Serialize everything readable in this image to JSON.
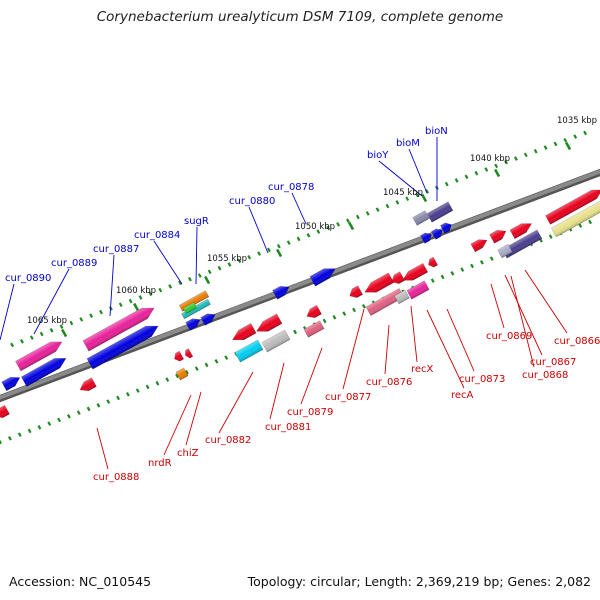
{
  "title": "Corynebacterium urealyticum DSM 7109, complete genome",
  "footer": {
    "accession": "Accession: NC_010545",
    "topology": "Topology: circular; Length: 2,369,219 bp; Genes: 2,082"
  },
  "colors": {
    "background": "#ffffff",
    "backbone": "#8a8a8a",
    "tick": "#1f8a1f",
    "label_upper": "#0000cc",
    "label_lower": "#cc0000"
  },
  "kbp_labels": [
    "1035 kbp",
    "1040 kbp",
    "1045 kbp",
    "1050 kbp",
    "1055 kbp",
    "1060 kbp",
    "1065 kbp"
  ],
  "upper_labels": [
    "bioN",
    "bioM",
    "bioY",
    "cur_0878",
    "cur_0880",
    "sugR",
    "cur_0884",
    "cur_0887",
    "cur_0889",
    "cur_0890"
  ],
  "lower_labels": [
    "cur_0866",
    "cur_0867",
    "cur_0868",
    "cur_0869",
    "cur_0873",
    "recA",
    "recX",
    "cur_0876",
    "cur_0877",
    "cur_0879",
    "cur_0881",
    "cur_0882",
    "chiZ",
    "nrdR",
    "cur_0888"
  ]
}
